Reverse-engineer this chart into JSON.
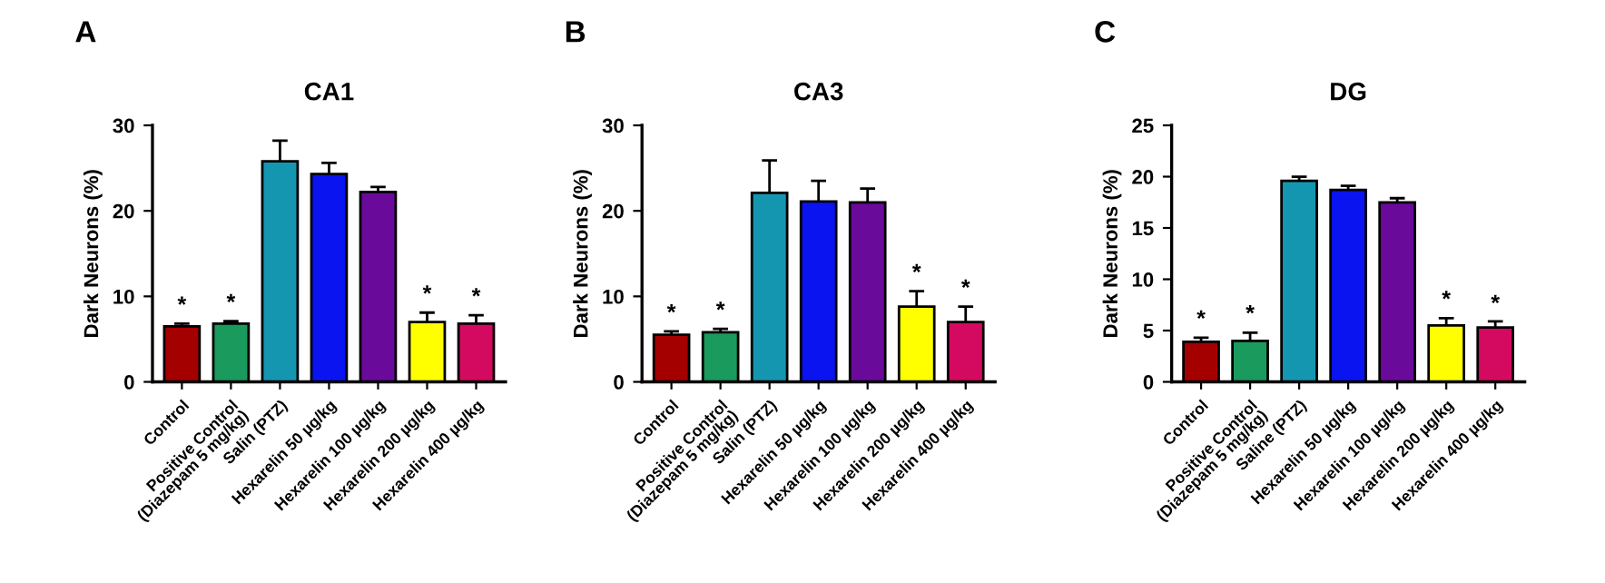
{
  "chart_data": [
    {
      "type": "bar",
      "title": "CA1",
      "ylabel": "Dark Neurons (%)",
      "categories": [
        "Control",
        "Positive Control\n(Diazepam 5 mg/kg)",
        "Salin (PTZ)",
        "Hexarelin 50 µg/kg",
        "Hexarelin 100 µg/kg",
        "Hexarelin 200 µg/kg",
        "Hexarelin 400 µg/kg"
      ],
      "values": [
        6.5,
        6.8,
        25.8,
        24.3,
        22.2,
        7.0,
        6.8
      ],
      "errors": [
        0.3,
        0.3,
        2.4,
        1.3,
        0.6,
        1.1,
        1.0
      ],
      "colors": [
        "#a50000",
        "#1a9a5c",
        "#1596b0",
        "#0a14f0",
        "#6a0a9a",
        "#ffff00",
        "#d40a60"
      ],
      "ylim": [
        0,
        30
      ],
      "yticks": [
        0,
        10,
        20,
        30
      ],
      "annotations": [
        "A",
        {
          "text": "*",
          "x": "Control",
          "y": 7.6
        },
        {
          "text": "*",
          "x": "Positive Control\n(Diazepam 5 mg/kg)",
          "y": 7.9
        },
        {
          "text": "*",
          "x": "Hexarelin 200 µg/kg",
          "y": 8.9
        },
        {
          "text": "*",
          "x": "Hexarelin 400 µg/kg",
          "y": 8.6
        }
      ]
    },
    {
      "type": "bar",
      "title": "CA3",
      "ylabel": "Dark Neurons (%)",
      "categories": [
        "Control",
        "Positive Control\n(Diazepam 5 mg/kg)",
        "Salin (PTZ)",
        "Hexarelin 50 µg/kg",
        "Hexarelin 100 µg/kg",
        "Hexarelin 200 µg/kg",
        "Hexarelin 400 µg/kg"
      ],
      "values": [
        5.5,
        5.8,
        22.1,
        21.1,
        21.0,
        8.8,
        7.0
      ],
      "errors": [
        0.4,
        0.4,
        3.8,
        2.4,
        1.6,
        1.8,
        1.8
      ],
      "colors": [
        "#a50000",
        "#1a9a5c",
        "#1596b0",
        "#0a14f0",
        "#6a0a9a",
        "#ffff00",
        "#d40a60"
      ],
      "ylim": [
        0,
        30
      ],
      "yticks": [
        0,
        10,
        20,
        30
      ],
      "annotations": [
        "B",
        {
          "text": "*",
          "x": "Control",
          "y": 6.7
        },
        {
          "text": "*",
          "x": "Positive Control\n(Diazepam 5 mg/kg)",
          "y": 7.0
        },
        {
          "text": "*",
          "x": "Hexarelin 200 µg/kg",
          "y": 11.4
        },
        {
          "text": "*",
          "x": "Hexarelin 400 µg/kg",
          "y": 9.6
        }
      ]
    },
    {
      "type": "bar",
      "title": "DG",
      "ylabel": "Dark Neurons (%)",
      "categories": [
        "Control",
        "Positive Control\n(Diazepam 5 mg/kg)",
        "Saline (PTZ)",
        "Hexarelin 50 µg/kg",
        "Hexarelin 100 µg/kg",
        "Hexarelin 200 µg/kg",
        "Hexarelin 400 µg/kg"
      ],
      "values": [
        3.9,
        4.0,
        19.6,
        18.7,
        17.5,
        5.5,
        5.3
      ],
      "errors": [
        0.4,
        0.8,
        0.4,
        0.4,
        0.4,
        0.7,
        0.6
      ],
      "colors": [
        "#a50000",
        "#1a9a5c",
        "#1596b0",
        "#0a14f0",
        "#6a0a9a",
        "#ffff00",
        "#d40a60"
      ],
      "ylim": [
        0,
        25
      ],
      "yticks": [
        0,
        5,
        10,
        15,
        20,
        25
      ],
      "annotations": [
        "C",
        {
          "text": "*",
          "x": "Control",
          "y": 5.0
        },
        {
          "text": "*",
          "x": "Positive Control\n(Diazepam 5 mg/kg)",
          "y": 5.5
        },
        {
          "text": "*",
          "x": "Hexarelin 200 µg/kg",
          "y": 6.9
        },
        {
          "text": "*",
          "x": "Hexarelin 400 µg/kg",
          "y": 6.5
        }
      ]
    }
  ]
}
